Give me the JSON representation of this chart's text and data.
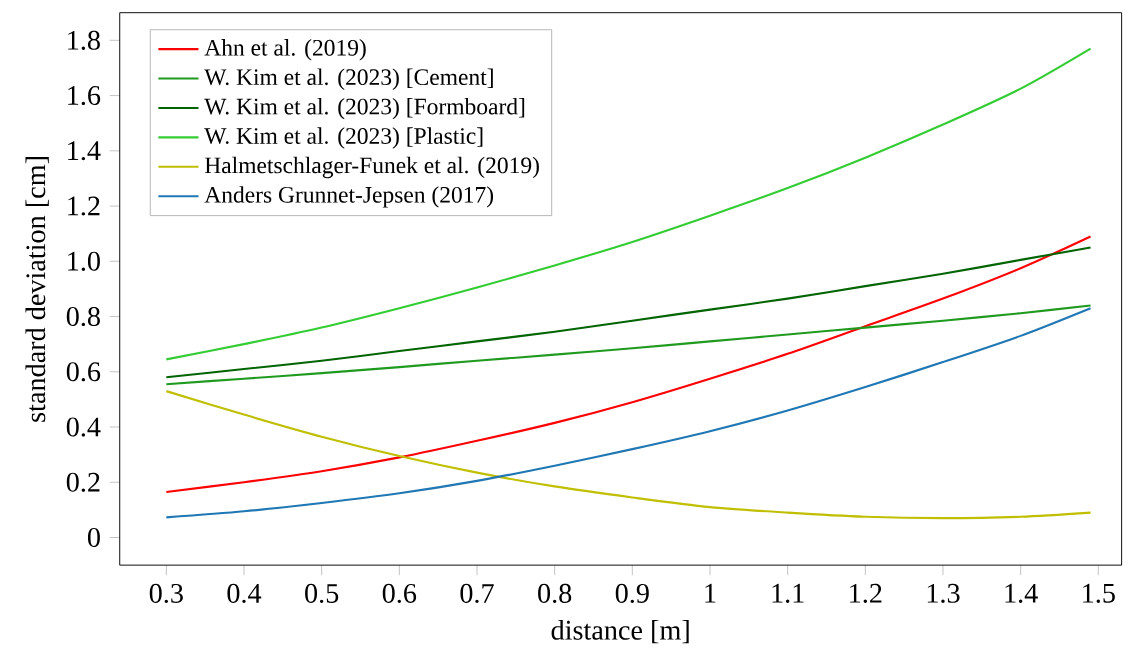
{
  "chart_data": {
    "type": "line",
    "xlabel": "distance [m]",
    "ylabel": "standard deviation [cm]",
    "xlim": [
      0.24,
      1.53
    ],
    "ylim": [
      -0.1,
      1.9
    ],
    "xticks": [
      0.3,
      0.4,
      0.5,
      0.6,
      0.7,
      0.8,
      0.9,
      1,
      1.1,
      1.2,
      1.3,
      1.4,
      1.5
    ],
    "yticks": [
      0,
      0.2,
      0.4,
      0.6,
      0.8,
      {
        "value": 1,
        "label": "1.0"
      },
      1.2,
      1.4,
      1.6,
      1.8
    ],
    "grid": false,
    "legend": "top left",
    "marker": "none",
    "line_style": "solid",
    "x": [
      0.3,
      0.4,
      0.5,
      0.6,
      0.7,
      0.8,
      0.9,
      1.0,
      1.1,
      1.2,
      1.3,
      1.4,
      1.49
    ],
    "series": [
      {
        "name": "Ahn et al. (2019)",
        "color": "#ff0000",
        "values": [
          0.165,
          0.2,
          0.24,
          0.29,
          0.35,
          0.415,
          0.49,
          0.575,
          0.665,
          0.765,
          0.865,
          0.975,
          1.09
        ]
      },
      {
        "name": "W. Kim et al. (2023) [Cement]",
        "color": "#1f9a1f",
        "values": [
          0.555,
          0.575,
          0.595,
          0.617,
          0.64,
          0.662,
          0.685,
          0.71,
          0.735,
          0.76,
          0.785,
          0.812,
          0.84
        ]
      },
      {
        "name": "W. Kim et al. (2023) [Formboard]",
        "color": "#006400",
        "values": [
          0.58,
          0.61,
          0.64,
          0.675,
          0.71,
          0.745,
          0.785,
          0.825,
          0.865,
          0.91,
          0.955,
          1.005,
          1.05
        ]
      },
      {
        "name": "W. Kim et al. (2023) [Plastic]",
        "color": "#33cc33",
        "values": [
          0.645,
          0.7,
          0.76,
          0.83,
          0.905,
          0.985,
          1.07,
          1.165,
          1.265,
          1.375,
          1.495,
          1.625,
          1.77
        ]
      },
      {
        "name": "Halmetschlager-Funek et al. (2019)",
        "color": "#bfbf00",
        "values": [
          0.53,
          0.445,
          0.365,
          0.295,
          0.235,
          0.185,
          0.145,
          0.11,
          0.09,
          0.075,
          0.07,
          0.075,
          0.09
        ]
      },
      {
        "name": "Anders Grunnet-Jepsen (2017)",
        "color": "#1f77b4",
        "values": [
          0.073,
          0.095,
          0.125,
          0.16,
          0.205,
          0.26,
          0.32,
          0.385,
          0.46,
          0.545,
          0.635,
          0.73,
          0.83
        ]
      }
    ]
  }
}
